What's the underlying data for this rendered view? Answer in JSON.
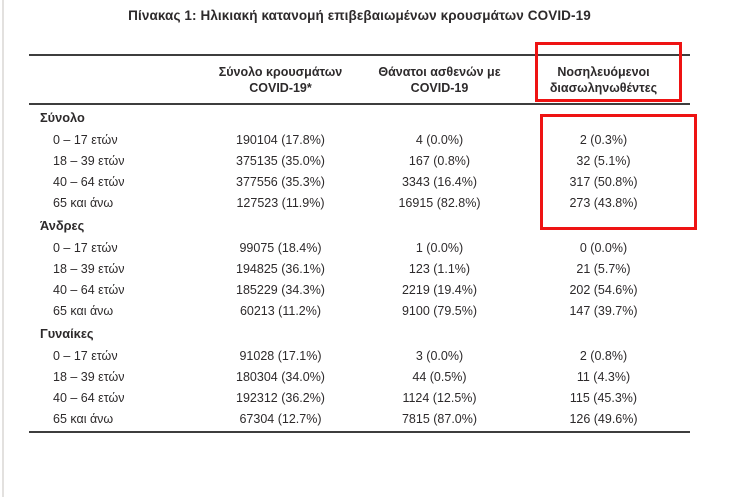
{
  "title": "Πίνακας 1: Ηλικιακή κατανομή επιβεβαιωμένων κρουσμάτων COVID-19",
  "highlight_color": "#ee1313",
  "table": {
    "headers": {
      "cases_line1": "Σύνολο κρουσμάτων",
      "cases_line2": "COVID-19*",
      "deaths_line1": "Θάνατοι ασθενών με",
      "deaths_line2": "COVID-19",
      "intubated_line1": "Νοσηλευόμενοι",
      "intubated_line2": "διασωληνωθέντες"
    },
    "sections": [
      {
        "label": "Σύνολο",
        "rows": [
          {
            "label": "0 – 17 ετών",
            "cases": "190104 (17.8%)",
            "deaths": "4 (0.0%)",
            "intubated": "2 (0.3%)"
          },
          {
            "label": "18 – 39 ετών",
            "cases": "375135 (35.0%)",
            "deaths": "167 (0.8%)",
            "intubated": "32 (5.1%)"
          },
          {
            "label": "40 – 64 ετών",
            "cases": "377556 (35.3%)",
            "deaths": "3343 (16.4%)",
            "intubated": "317 (50.8%)"
          },
          {
            "label": "65 και άνω",
            "cases": "127523 (11.9%)",
            "deaths": "16915 (82.8%)",
            "intubated": "273 (43.8%)"
          }
        ]
      },
      {
        "label": "Άνδρες",
        "rows": [
          {
            "label": "0 – 17 ετών",
            "cases": "99075 (18.4%)",
            "deaths": "1 (0.0%)",
            "intubated": "0 (0.0%)"
          },
          {
            "label": "18 – 39 ετών",
            "cases": "194825 (36.1%)",
            "deaths": "123 (1.1%)",
            "intubated": "21 (5.7%)"
          },
          {
            "label": "40 – 64 ετών",
            "cases": "185229 (34.3%)",
            "deaths": "2219 (19.4%)",
            "intubated": "202 (54.6%)"
          },
          {
            "label": "65 και άνω",
            "cases": "60213 (11.2%)",
            "deaths": "9100 (79.5%)",
            "intubated": "147 (39.7%)"
          }
        ]
      },
      {
        "label": "Γυναίκες",
        "rows": [
          {
            "label": "0 – 17 ετών",
            "cases": "91028 (17.1%)",
            "deaths": "3 (0.0%)",
            "intubated": "2 (0.8%)"
          },
          {
            "label": "18 – 39 ετών",
            "cases": "180304 (34.0%)",
            "deaths": "44 (0.5%)",
            "intubated": "11 (4.3%)"
          },
          {
            "label": "40 – 64 ετών",
            "cases": "192312 (36.2%)",
            "deaths": "1124 (12.5%)",
            "intubated": "115 (45.3%)"
          },
          {
            "label": "65 και άνω",
            "cases": "67304 (12.7%)",
            "deaths": "7815 (87.0%)",
            "intubated": "126 (49.6%)"
          }
        ]
      }
    ]
  }
}
